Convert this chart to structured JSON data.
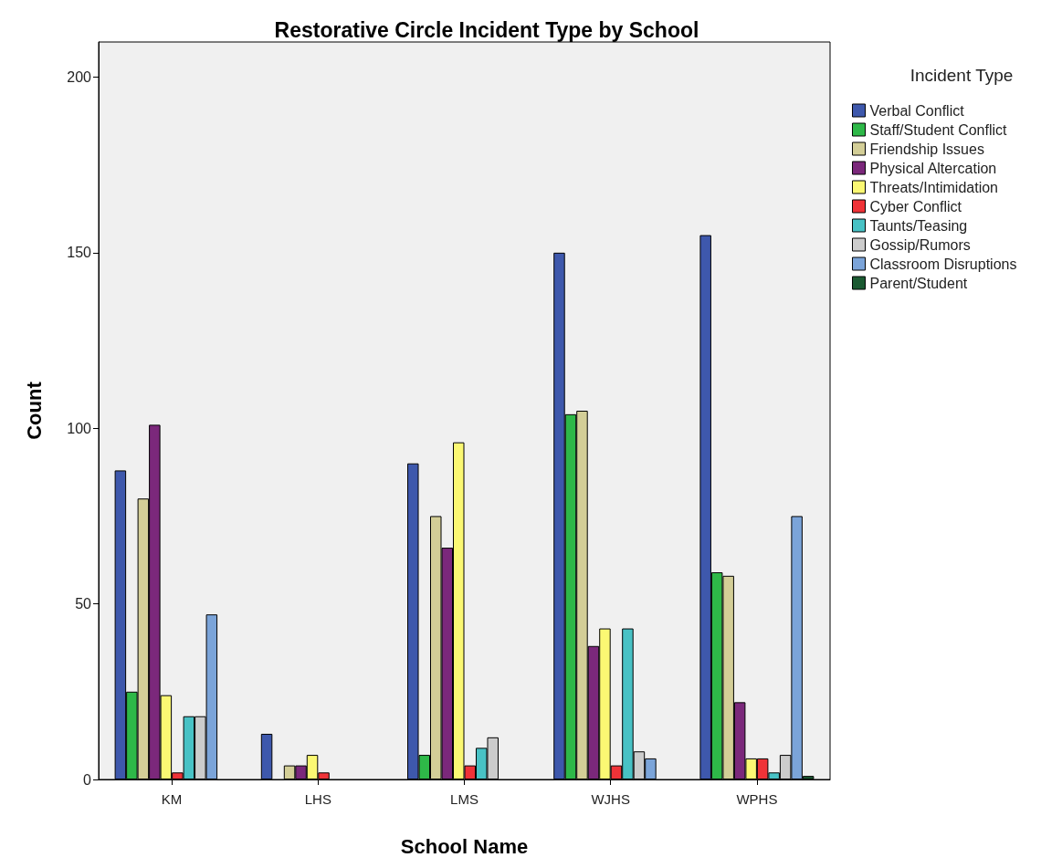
{
  "chart_data": {
    "type": "bar",
    "title": "Restorative Circle Incident Type by School",
    "xlabel": "School Name",
    "ylabel": "Count",
    "legend_title": "Incident Type",
    "categories": [
      "KM",
      "LHS",
      "LMS",
      "WJHS",
      "WPHS"
    ],
    "series": [
      {
        "name": "Verbal Conflict",
        "color": "#3e58ac",
        "values": [
          88,
          13,
          90,
          150,
          155
        ]
      },
      {
        "name": "Staff/Student Conflict",
        "color": "#2eb848",
        "values": [
          25,
          0,
          7,
          104,
          59
        ]
      },
      {
        "name": "Friendship Issues",
        "color": "#d3ce97",
        "values": [
          80,
          4,
          75,
          105,
          58
        ]
      },
      {
        "name": "Physical Altercation",
        "color": "#7b287b",
        "values": [
          101,
          4,
          66,
          38,
          22
        ]
      },
      {
        "name": "Threats/Intimidation",
        "color": "#fbf873",
        "values": [
          24,
          7,
          96,
          43,
          6
        ]
      },
      {
        "name": "Cyber Conflict",
        "color": "#ef3338",
        "values": [
          2,
          2,
          4,
          4,
          6
        ]
      },
      {
        "name": "Taunts/Teasing",
        "color": "#48c2c5",
        "values": [
          18,
          0,
          9,
          43,
          2
        ]
      },
      {
        "name": "Gossip/Rumors",
        "color": "#cccccc",
        "values": [
          18,
          0,
          12,
          8,
          7
        ]
      },
      {
        "name": "Classroom Disruptions",
        "color": "#7ba4d9",
        "values": [
          47,
          0,
          0,
          6,
          75
        ]
      },
      {
        "name": "Parent/Student",
        "color": "#1b5a32",
        "values": [
          0,
          0,
          0,
          0,
          1
        ]
      }
    ],
    "ylim": [
      0,
      210
    ],
    "yticks": [
      0,
      50,
      100,
      150,
      200
    ],
    "grid": false,
    "legend": "right"
  }
}
